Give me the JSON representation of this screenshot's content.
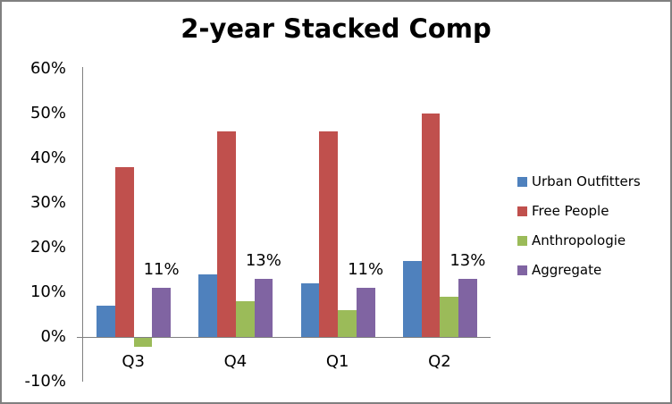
{
  "title": "2-year Stacked Comp",
  "chart_data": {
    "type": "bar",
    "title": "2-year Stacked Comp",
    "categories": [
      "Q3",
      "Q4",
      "Q1",
      "Q2"
    ],
    "series": [
      {
        "name": "Urban Outfitters",
        "color": "#4F81BD",
        "values": [
          7,
          14,
          12,
          17
        ]
      },
      {
        "name": "Free People",
        "color": "#C0504D",
        "values": [
          38,
          46,
          46,
          50
        ]
      },
      {
        "name": "Anthropologie",
        "color": "#9BBB59",
        "values": [
          -2,
          8,
          6,
          9
        ]
      },
      {
        "name": "Aggregate",
        "color": "#8064A2",
        "values": [
          11,
          13,
          11,
          13
        ],
        "data_labels": [
          "11%",
          "13%",
          "11%",
          "13%"
        ]
      }
    ],
    "y_axis": {
      "min": -10,
      "max": 60,
      "tick_step": 10,
      "tick_labels": [
        "60%",
        "50%",
        "40%",
        "30%",
        "20%",
        "10%",
        "0%",
        "-10%"
      ],
      "unit": "%"
    },
    "grid": false,
    "legend_position": "right",
    "colors": {
      "axis": "#808080",
      "text": "#000000",
      "background": "#FFFFFF",
      "frame_border": "#808080"
    }
  }
}
